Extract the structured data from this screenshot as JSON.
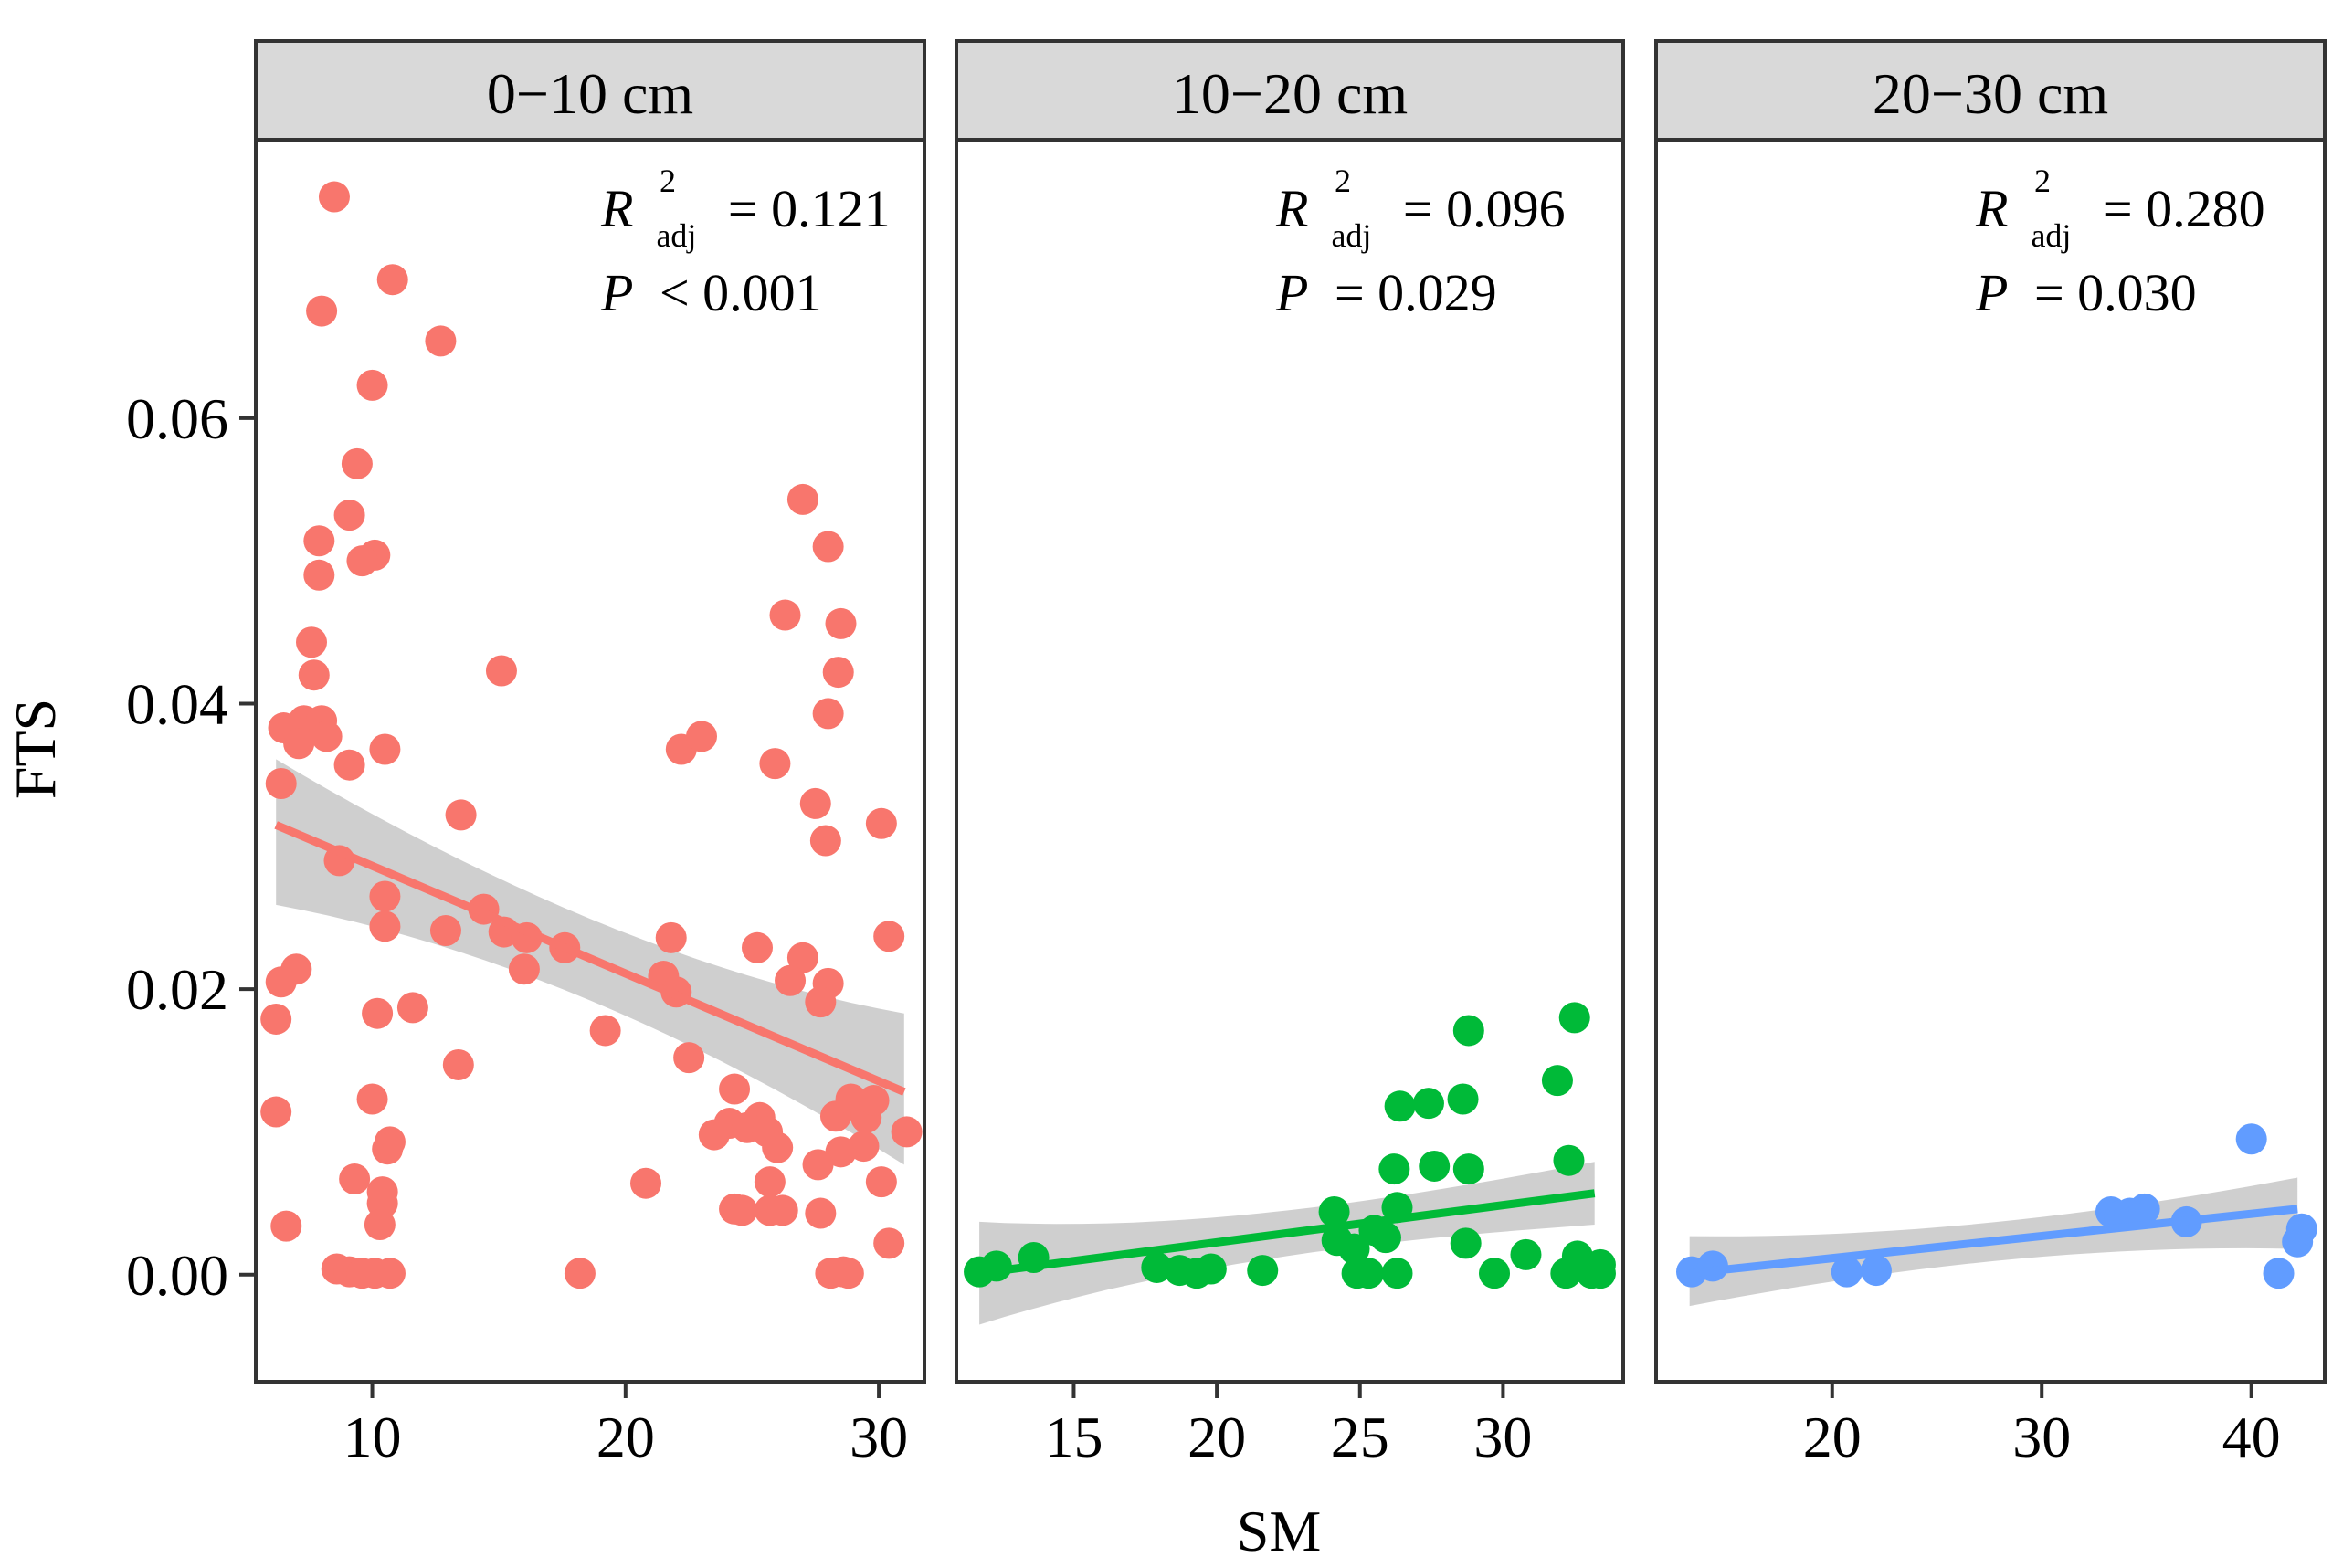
{
  "chart_data": {
    "type": "scatter",
    "xlabel": "SM",
    "ylabel": "FTS",
    "y_ticks": [
      "0.00",
      "0.02",
      "0.04",
      "0.06"
    ],
    "y_tick_values": [
      0,
      0.02,
      0.04,
      0.06
    ],
    "ylim": [
      -0.0075,
      0.0795
    ],
    "panels": [
      {
        "title": "0−10 cm",
        "color": "#F8766D",
        "xlim": [
          5.4,
          31.8
        ],
        "x_ticks": [
          "10",
          "20",
          "30"
        ],
        "x_tick_values": [
          10,
          20,
          30
        ],
        "stat_r2_value": "= 0.121",
        "stat_p": "< 0.001",
        "fit": {
          "x": [
            6.2,
            31.0
          ],
          "y": [
            0.0315,
            0.0128
          ],
          "ci_low": [
            0.0259,
            0.0077
          ],
          "ci_high": [
            0.0361,
            0.0183
          ]
        },
        "points": [
          [
            8.5,
            0.0755
          ],
          [
            10.8,
            0.0697
          ],
          [
            8.0,
            0.0675
          ],
          [
            12.7,
            0.0654
          ],
          [
            10.0,
            0.0623
          ],
          [
            9.4,
            0.0568
          ],
          [
            9.1,
            0.0532
          ],
          [
            7.9,
            0.0514
          ],
          [
            10.1,
            0.0504
          ],
          [
            9.6,
            0.05
          ],
          [
            7.9,
            0.049
          ],
          [
            7.6,
            0.0443
          ],
          [
            15.1,
            0.0423
          ],
          [
            7.7,
            0.042
          ],
          [
            7.3,
            0.0388
          ],
          [
            8.0,
            0.0388
          ],
          [
            6.5,
            0.0383
          ],
          [
            6.9,
            0.038
          ],
          [
            8.2,
            0.0377
          ],
          [
            7.1,
            0.0372
          ],
          [
            10.5,
            0.0368
          ],
          [
            9.1,
            0.0357
          ],
          [
            6.4,
            0.0344
          ],
          [
            13.5,
            0.0322
          ],
          [
            8.7,
            0.029
          ],
          [
            10.5,
            0.0265
          ],
          [
            14.4,
            0.0256
          ],
          [
            10.5,
            0.0244
          ],
          [
            12.9,
            0.0241
          ],
          [
            15.2,
            0.024
          ],
          [
            16.1,
            0.0236
          ],
          [
            17.6,
            0.0229
          ],
          [
            16.0,
            0.0214
          ],
          [
            7.0,
            0.0214
          ],
          [
            6.4,
            0.0205
          ],
          [
            11.6,
            0.0187
          ],
          [
            10.2,
            0.0183
          ],
          [
            6.2,
            0.0179
          ],
          [
            19.2,
            0.0171
          ],
          [
            13.4,
            0.0147
          ],
          [
            6.2,
            0.0114
          ],
          [
            10.0,
            0.0123
          ],
          [
            10.7,
            0.0093
          ],
          [
            10.6,
            0.0088
          ],
          [
            9.3,
            0.0067
          ],
          [
            10.4,
            0.0058
          ],
          [
            10.4,
            0.005
          ],
          [
            10.3,
            0.0035
          ],
          [
            6.6,
            0.0034
          ],
          [
            8.6,
            0.0004
          ],
          [
            9.1,
            0.0002
          ],
          [
            9.6,
            0.0001
          ],
          [
            10.1,
            0.0001
          ],
          [
            10.7,
            0.0001
          ],
          [
            18.2,
            0.0001
          ],
          [
            21.8,
            0.0236
          ],
          [
            21.5,
            0.0209
          ],
          [
            22.0,
            0.0198
          ],
          [
            22.2,
            0.0368
          ],
          [
            23.0,
            0.0377
          ],
          [
            22.5,
            0.0152
          ],
          [
            20.8,
            0.0064
          ],
          [
            23.5,
            0.0098
          ],
          [
            24.3,
            0.013
          ],
          [
            24.1,
            0.0106
          ],
          [
            25.2,
            0.0229
          ],
          [
            25.3,
            0.011
          ],
          [
            24.8,
            0.0103
          ],
          [
            25.6,
            0.01
          ],
          [
            24.3,
            0.0046
          ],
          [
            24.6,
            0.0045
          ],
          [
            25.7,
            0.0065
          ],
          [
            26.0,
            0.0089
          ],
          [
            25.7,
            0.0045
          ],
          [
            26.2,
            0.0045
          ],
          [
            26.3,
            0.0462
          ],
          [
            25.9,
            0.0358
          ],
          [
            27.0,
            0.0543
          ],
          [
            28.0,
            0.051
          ],
          [
            28.5,
            0.0456
          ],
          [
            28.4,
            0.0422
          ],
          [
            28.0,
            0.0393
          ],
          [
            27.5,
            0.033
          ],
          [
            27.9,
            0.0304
          ],
          [
            27.0,
            0.0222
          ],
          [
            26.5,
            0.0206
          ],
          [
            28.0,
            0.0204
          ],
          [
            27.7,
            0.0191
          ],
          [
            28.3,
            0.0111
          ],
          [
            28.9,
            0.0123
          ],
          [
            29.5,
            0.011
          ],
          [
            29.4,
            0.009
          ],
          [
            28.5,
            0.0086
          ],
          [
            27.6,
            0.0077
          ],
          [
            27.7,
            0.0043
          ],
          [
            28.1,
            0.0001
          ],
          [
            28.6,
            0.0002
          ],
          [
            28.8,
            0.0001
          ],
          [
            30.1,
            0.0316
          ],
          [
            30.4,
            0.0237
          ],
          [
            31.1,
            0.01
          ],
          [
            30.1,
            0.0065
          ],
          [
            30.4,
            0.0022
          ],
          [
            29.8,
            0.0122
          ]
        ]
      },
      {
        "title": "10−20 cm",
        "color": "#00BA38",
        "xlim": [
          10.9,
          34.2
        ],
        "x_ticks": [
          "15",
          "20",
          "25",
          "30"
        ],
        "x_tick_values": [
          15,
          20,
          25,
          30
        ],
        "stat_r2_value": "= 0.096",
        "stat_p": "= 0.029",
        "fit": {
          "x": [
            11.7,
            33.2
          ],
          "y": [
            0.0001,
            0.0057
          ],
          "ci_low": [
            -0.0035,
            0.0035
          ],
          "ci_high": [
            0.0037,
            0.0079
          ]
        },
        "points": [
          [
            11.7,
            0.0002
          ],
          [
            12.3,
            0.0006
          ],
          [
            13.6,
            0.0012
          ],
          [
            17.9,
            0.0005
          ],
          [
            18.7,
            0.0003
          ],
          [
            19.3,
            0.0001
          ],
          [
            19.8,
            0.0004
          ],
          [
            21.6,
            0.0003
          ],
          [
            24.1,
            0.0044
          ],
          [
            24.2,
            0.0024
          ],
          [
            24.8,
            0.0018
          ],
          [
            24.9,
            0.0001
          ],
          [
            25.3,
            0.0001
          ],
          [
            25.5,
            0.0031
          ],
          [
            25.9,
            0.0026
          ],
          [
            26.3,
            0.0047
          ],
          [
            26.2,
            0.0074
          ],
          [
            26.4,
            0.0118
          ],
          [
            27.4,
            0.012
          ],
          [
            27.6,
            0.0076
          ],
          [
            28.6,
            0.0123
          ],
          [
            28.8,
            0.0171
          ],
          [
            28.8,
            0.0074
          ],
          [
            28.7,
            0.0022
          ],
          [
            26.3,
            0.0001
          ],
          [
            29.7,
            0.0001
          ],
          [
            30.8,
            0.0014
          ],
          [
            31.9,
            0.0136
          ],
          [
            32.3,
            0.008
          ],
          [
            32.5,
            0.018
          ],
          [
            32.2,
            0.0001
          ],
          [
            32.6,
            0.0013
          ],
          [
            33.1,
            0.0001
          ],
          [
            33.4,
            0.0007
          ],
          [
            33.4,
            0.0001
          ],
          [
            32.6,
            0.0007
          ]
        ]
      },
      {
        "title": "20−30 cm",
        "color": "#619CFF",
        "xlim": [
          11.6,
          43.5
        ],
        "x_ticks": [
          "20",
          "30",
          "40"
        ],
        "x_tick_values": [
          20,
          30,
          40
        ],
        "stat_r2_value": "= 0.280",
        "stat_p": "= 0.030",
        "fit": {
          "x": [
            13.2,
            42.2
          ],
          "y": [
            0.0001,
            0.0046
          ],
          "ci_low": [
            -0.0022,
            0.0018
          ],
          "ci_high": [
            0.0027,
            0.0068
          ]
        },
        "points": [
          [
            13.3,
            0.0002
          ],
          [
            14.3,
            0.0006
          ],
          [
            20.7,
            0.0002
          ],
          [
            22.1,
            0.0003
          ],
          [
            33.3,
            0.0044
          ],
          [
            33.7,
            0.0041
          ],
          [
            34.2,
            0.0043
          ],
          [
            34.9,
            0.0046
          ],
          [
            36.9,
            0.0037
          ],
          [
            40.0,
            0.0095
          ],
          [
            41.3,
            0.0001
          ],
          [
            42.2,
            0.0023
          ],
          [
            42.4,
            0.0032
          ]
        ]
      }
    ]
  }
}
